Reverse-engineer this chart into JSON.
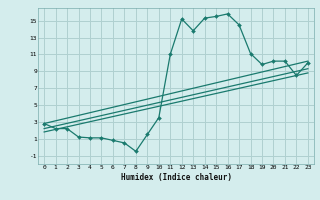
{
  "xlabel": "Humidex (Indice chaleur)",
  "bg_color": "#d4eded",
  "grid_color": "#afd0d0",
  "line_color": "#1a7a6e",
  "x_ticks": [
    0,
    1,
    2,
    3,
    4,
    5,
    6,
    7,
    8,
    9,
    10,
    11,
    12,
    13,
    14,
    15,
    16,
    17,
    18,
    19,
    20,
    21,
    22,
    23
  ],
  "y_ticks": [
    -1,
    1,
    3,
    5,
    7,
    9,
    11,
    13,
    15
  ],
  "ylim": [
    -2.0,
    16.5
  ],
  "xlim": [
    -0.5,
    23.5
  ],
  "line1_x": [
    0,
    1,
    2,
    3,
    4,
    5,
    6,
    7,
    8,
    9,
    10,
    11,
    12,
    13,
    14,
    15,
    16,
    17,
    18,
    19,
    20,
    21,
    22,
    23
  ],
  "line1_y": [
    2.8,
    2.2,
    2.2,
    1.2,
    1.1,
    1.1,
    0.8,
    0.5,
    -0.5,
    1.5,
    3.5,
    11.0,
    15.2,
    13.8,
    15.3,
    15.5,
    15.8,
    14.5,
    11.1,
    9.8,
    10.2,
    10.2,
    8.5,
    10.0
  ],
  "line2_x": [
    0,
    23
  ],
  "line2_y": [
    2.2,
    9.3
  ],
  "line3_x": [
    0,
    23
  ],
  "line3_y": [
    1.8,
    8.8
  ],
  "line4_x": [
    0,
    23
  ],
  "line4_y": [
    2.8,
    10.2
  ]
}
